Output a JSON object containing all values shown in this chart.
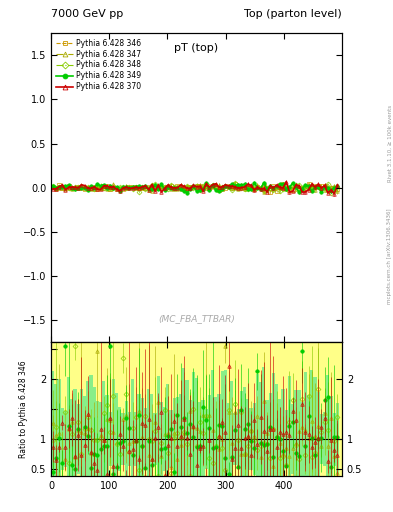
{
  "title_left": "7000 GeV pp",
  "title_right": "Top (parton level)",
  "plot_title": "pT (top)",
  "ylabel_ratio": "Ratio to Pythia 6.428 346",
  "watermark": "(MC_FBA_TTBAR)",
  "right_label1": "Rivet 3.1.10, ≥ 100k events",
  "right_label2": "mcplots.cern.ch [arXiv:1306.3436]",
  "xlim": [
    0,
    500
  ],
  "ylim_main": [
    -1.75,
    1.75
  ],
  "ylim_ratio": [
    0.38,
    2.62
  ],
  "series": [
    {
      "label": "Pythia 6.428 346",
      "color": "#cc9900",
      "marker": "s",
      "linestyle": "--",
      "filled": false,
      "linewidth": 0.8
    },
    {
      "label": "Pythia 6.428 347",
      "color": "#aaaa00",
      "marker": "^",
      "linestyle": "-.",
      "filled": false,
      "linewidth": 0.8
    },
    {
      "label": "Pythia 6.428 348",
      "color": "#88cc00",
      "marker": "D",
      "linestyle": "-.",
      "filled": false,
      "linewidth": 0.8
    },
    {
      "label": "Pythia 6.428 349",
      "color": "#00cc00",
      "marker": "o",
      "linestyle": "-",
      "filled": true,
      "linewidth": 1.2
    },
    {
      "label": "Pythia 6.428 370",
      "color": "#cc0000",
      "marker": "^",
      "linestyle": "-",
      "filled": false,
      "linewidth": 1.2
    }
  ],
  "band_color_yellow": "#ffff88",
  "band_color_green": "#88ee88",
  "background_color": "#ffffff"
}
